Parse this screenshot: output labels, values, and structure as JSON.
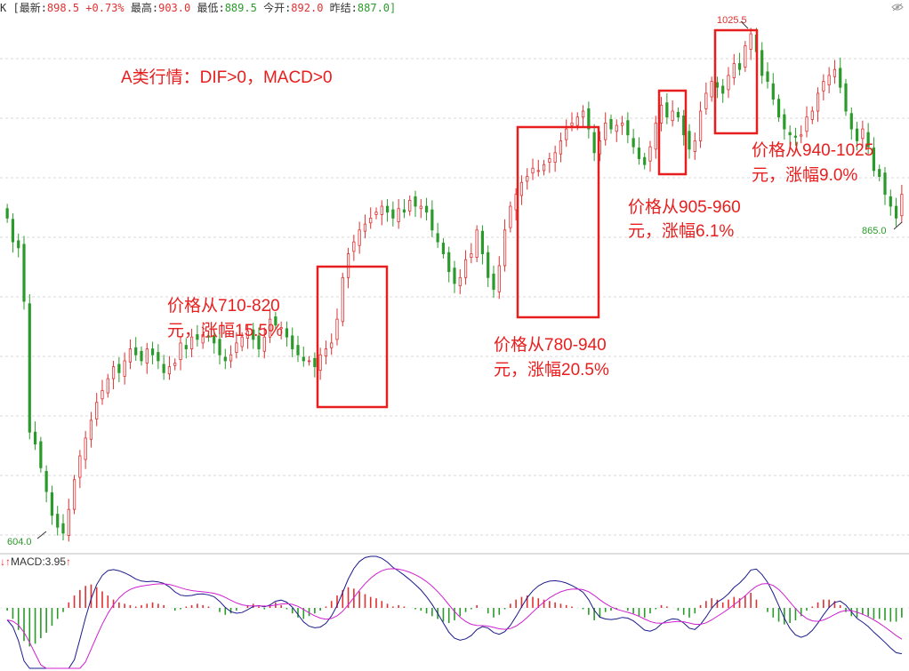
{
  "header": {
    "symbol": "K",
    "latest_label": "[最新:",
    "latest_value": "898.5",
    "change_pct": "+0.73%",
    "high_label": "最高:",
    "high_value": "903.0",
    "low_label": "最低:",
    "low_value": "889.5",
    "open_label": "今开:",
    "open_value": "892.0",
    "prev_label": "昨结:",
    "prev_value": "887.0]",
    "eye_icon": "eye-icon"
  },
  "annotations": {
    "headline": "A类行情：DIF>0，MACD>0",
    "note1_line1": "价格从710-820",
    "note1_line2": "元，涨幅15.5%",
    "note2_line1": "价格从780-940",
    "note2_line2": "元，涨幅20.5%",
    "note3_line1": "价格从905-960",
    "note3_line2": "元，涨幅6.1%",
    "note4_line1": "价格从940-1025",
    "note4_line2": "元，涨幅9.0%"
  },
  "macd": {
    "label": "MACD:3.95",
    "arrow_up": "↑",
    "arrow_dn": "↓"
  },
  "chart_data": {
    "type": "candlestick",
    "y_range": [
      590,
      1040
    ],
    "grid": true,
    "price_labels": {
      "low": "604.0",
      "high": "1025.5",
      "last_low": "865.0"
    },
    "close": [
      870,
      850,
      845,
      800,
      690,
      680,
      660,
      640,
      620,
      610,
      605,
      625,
      650,
      670,
      685,
      700,
      715,
      725,
      735,
      745,
      740,
      750,
      760,
      755,
      750,
      760,
      755,
      750,
      740,
      745,
      748,
      765,
      760,
      770,
      768,
      772,
      770,
      765,
      755,
      750,
      755,
      765,
      770,
      775,
      768,
      760,
      770,
      785,
      780,
      778,
      770,
      760,
      755,
      750,
      750,
      745,
      755,
      760,
      765,
      785,
      820,
      840,
      850,
      860,
      865,
      870,
      875,
      880,
      875,
      870,
      878,
      875,
      885,
      880,
      880,
      875,
      860,
      850,
      840,
      825,
      815,
      820,
      835,
      840,
      860,
      840,
      820,
      810,
      830,
      860,
      880,
      890,
      900,
      905,
      912,
      910,
      915,
      920,
      925,
      935,
      945,
      950,
      955,
      960,
      945,
      925,
      935,
      950,
      945,
      948,
      950,
      940,
      930,
      920,
      915,
      930,
      950,
      965,
      955,
      960,
      955,
      940,
      928,
      935,
      960,
      975,
      985,
      980,
      975,
      990,
      1000,
      995,
      1015,
      1025,
      1010,
      990,
      985,
      970,
      955,
      945,
      940,
      938,
      940,
      955,
      960,
      975,
      985,
      990,
      995,
      980,
      960,
      945,
      935,
      945,
      930,
      910,
      905,
      890,
      880,
      870,
      890
    ],
    "macd_hist": [
      -2,
      -8,
      -16,
      -24,
      -28,
      -26,
      -22,
      -18,
      -13,
      -8,
      -3,
      4,
      9,
      13,
      16,
      17,
      15,
      12,
      9,
      6,
      4,
      3,
      2,
      1,
      2,
      3,
      4,
      3,
      2,
      0,
      -2,
      -1,
      1,
      2,
      3,
      2,
      1,
      0,
      -3,
      -5,
      -4,
      -2,
      0,
      2,
      3,
      1,
      -1,
      2,
      4,
      2,
      -1,
      -4,
      -7,
      -8,
      -6,
      -4,
      -2,
      1,
      5,
      9,
      13,
      15,
      14,
      12,
      10,
      8,
      7,
      5,
      3,
      1,
      2,
      1,
      0,
      -1,
      -2,
      -4,
      -6,
      -8,
      -10,
      -11,
      -9,
      -6,
      -3,
      -1,
      2,
      0,
      -4,
      -7,
      -5,
      -1,
      3,
      6,
      8,
      9,
      8,
      7,
      6,
      5,
      4,
      3,
      2,
      1,
      0,
      -1,
      -5,
      -9,
      -7,
      -3,
      -2,
      -1,
      0,
      -2,
      -4,
      -6,
      -7,
      -4,
      -1,
      2,
      1,
      0,
      -2,
      -5,
      -7,
      -4,
      2,
      5,
      7,
      6,
      4,
      6,
      8,
      7,
      9,
      11,
      6,
      0,
      -3,
      -7,
      -10,
      -12,
      -11,
      -9,
      -6,
      -2,
      1,
      4,
      6,
      6,
      5,
      2,
      -3,
      -6,
      -7,
      -5,
      -6,
      -8,
      -8,
      -9,
      -10,
      -10,
      -7
    ]
  }
}
